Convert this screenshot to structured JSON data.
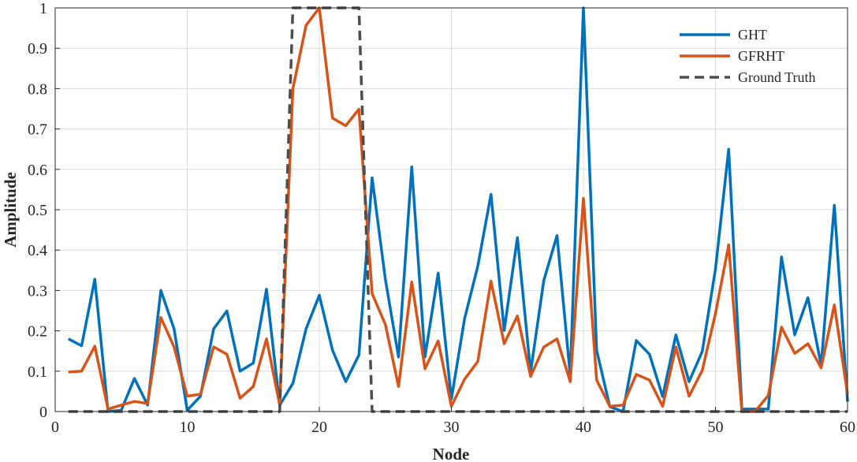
{
  "chart_data": {
    "type": "line",
    "xlabel": "Node",
    "ylabel": "Amplitude",
    "xlim": [
      0,
      60
    ],
    "ylim": [
      0,
      1
    ],
    "xticks": [
      "0",
      "10",
      "20",
      "30",
      "40",
      "50",
      "60"
    ],
    "yticks": [
      "0",
      "0.1",
      "0.2",
      "0.3",
      "0.4",
      "0.5",
      "0.6",
      "0.7",
      "0.8",
      "0.9",
      "1"
    ],
    "grid": true,
    "legend_position": "top-right",
    "x": [
      1,
      2,
      3,
      4,
      5,
      6,
      7,
      8,
      9,
      10,
      11,
      12,
      13,
      14,
      15,
      16,
      17,
      18,
      19,
      20,
      21,
      22,
      23,
      24,
      25,
      26,
      27,
      28,
      29,
      30,
      31,
      32,
      33,
      34,
      35,
      36,
      37,
      38,
      39,
      40,
      41,
      42,
      43,
      44,
      45,
      46,
      47,
      48,
      49,
      50,
      51,
      52,
      53,
      54,
      55,
      56,
      57,
      58,
      59,
      60
    ],
    "series": [
      {
        "name": "GHT",
        "color": "#0072bd",
        "style": "solid",
        "values": [
          0.18,
          0.163,
          0.328,
          0.0,
          0.003,
          0.082,
          0.016,
          0.3,
          0.205,
          0.003,
          0.038,
          0.205,
          0.249,
          0.1,
          0.12,
          0.303,
          0.016,
          0.07,
          0.205,
          0.288,
          0.152,
          0.074,
          0.14,
          0.579,
          0.328,
          0.135,
          0.606,
          0.135,
          0.343,
          0.031,
          0.23,
          0.36,
          0.538,
          0.201,
          0.431,
          0.098,
          0.325,
          0.436,
          0.09,
          1.0,
          0.152,
          0.012,
          0.0,
          0.176,
          0.142,
          0.037,
          0.19,
          0.074,
          0.149,
          0.353,
          0.65,
          0.006,
          0.006,
          0.006,
          0.383,
          0.19,
          0.282,
          0.115,
          0.511,
          0.025
        ]
      },
      {
        "name": "GFRHT",
        "color": "#d95319",
        "style": "solid",
        "values": [
          0.098,
          0.1,
          0.162,
          0.006,
          0.016,
          0.025,
          0.02,
          0.233,
          0.16,
          0.038,
          0.043,
          0.16,
          0.142,
          0.033,
          0.062,
          0.18,
          0.016,
          0.8,
          0.957,
          1.0,
          0.727,
          0.708,
          0.749,
          0.292,
          0.216,
          0.062,
          0.321,
          0.106,
          0.175,
          0.013,
          0.08,
          0.124,
          0.323,
          0.168,
          0.237,
          0.087,
          0.16,
          0.18,
          0.074,
          0.528,
          0.078,
          0.013,
          0.016,
          0.092,
          0.078,
          0.013,
          0.16,
          0.038,
          0.102,
          0.243,
          0.413,
          0.0,
          0.0,
          0.04,
          0.209,
          0.144,
          0.168,
          0.108,
          0.264,
          0.043
        ]
      },
      {
        "name": "Ground Truth",
        "color": "#4d4d4d",
        "style": "dashed",
        "values": [
          0,
          0,
          0,
          0,
          0,
          0,
          0,
          0,
          0,
          0,
          0,
          0,
          0,
          0,
          0,
          0,
          0,
          1,
          1,
          1,
          1,
          1,
          1,
          0,
          0,
          0,
          0,
          0,
          0,
          0,
          0,
          0,
          0,
          0,
          0,
          0,
          0,
          0,
          0,
          0,
          0,
          0,
          0,
          0,
          0,
          0,
          0,
          0,
          0,
          0,
          0,
          0,
          0,
          0,
          0,
          0,
          0,
          0,
          0,
          0
        ]
      }
    ]
  }
}
